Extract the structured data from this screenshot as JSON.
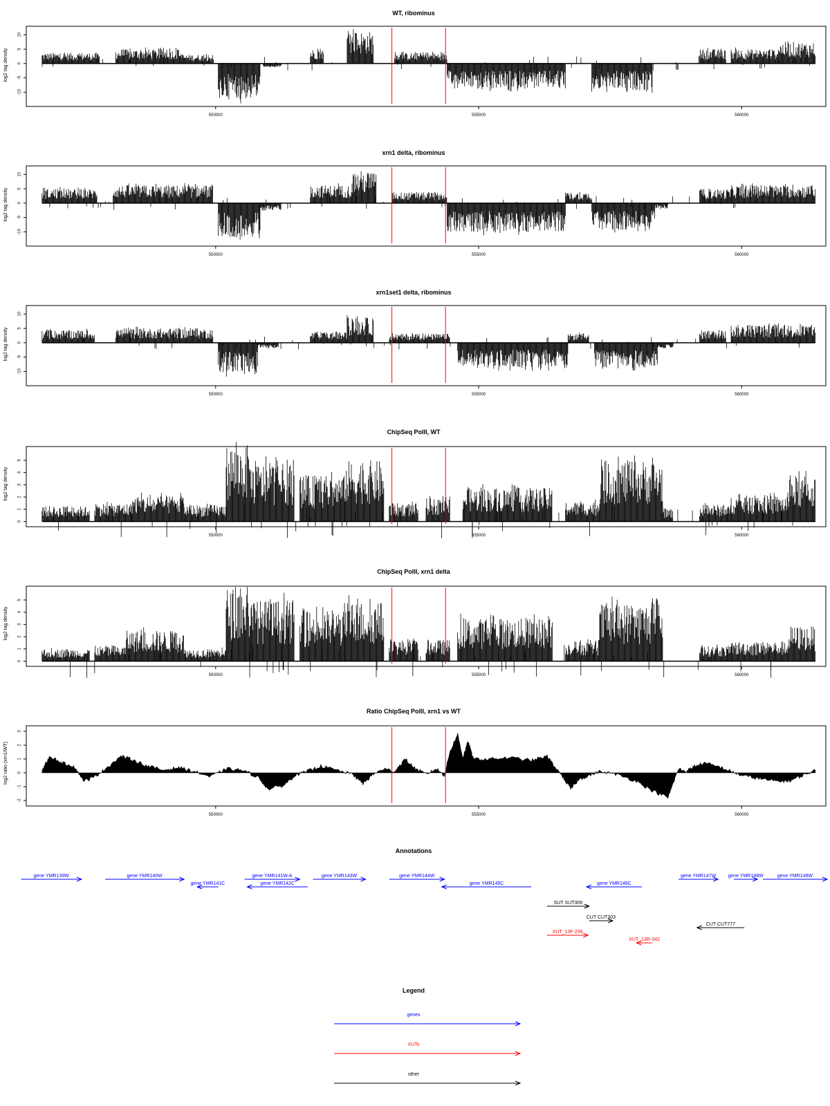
{
  "chart_data": [
    {
      "type": "bar",
      "title": "WT, ribominus",
      "ylabel": "log2 tag density",
      "ylim": [
        -14,
        12
      ],
      "xlim": [
        546400,
        561600
      ],
      "yticks": [
        -10,
        -5,
        0,
        5,
        10
      ],
      "xticks": [
        550000,
        555000,
        560000
      ],
      "markers": [
        553350,
        554370
      ],
      "grid": false,
      "series": [
        {
          "segments": [
            {
              "x": [
                546700,
                547800
              ],
              "y": 3
            },
            {
              "x": [
                548100,
                549350
              ],
              "y": 4
            },
            {
              "x": [
                549350,
                549950
              ],
              "y": 2.5
            },
            {
              "x": [
                550050,
                550850
              ],
              "y": -10
            },
            {
              "x": [
                550900,
                551250
              ],
              "y": -1
            },
            {
              "x": [
                551800,
                552050
              ],
              "y": 4
            },
            {
              "x": [
                552500,
                553000
              ],
              "y": 9
            },
            {
              "x": [
                553400,
                554400
              ],
              "y": 3
            },
            {
              "x": [
                554400,
                556650
              ],
              "y": -7
            },
            {
              "x": [
                557150,
                558300
              ],
              "y": -7.5
            },
            {
              "x": [
                559200,
                559700
              ],
              "y": 4
            },
            {
              "x": [
                559800,
                560700
              ],
              "y": 4
            },
            {
              "x": [
                560700,
                561400
              ],
              "y": 6
            }
          ]
        }
      ]
    },
    {
      "type": "bar",
      "title": "xrn1 delta, ribominus",
      "ylabel": "log2 tag density",
      "ylim": [
        -14,
        12
      ],
      "xlim": [
        546400,
        561600
      ],
      "yticks": [
        -10,
        -5,
        0,
        5,
        10
      ],
      "xticks": [
        550000,
        555000,
        560000
      ],
      "markers": [
        553350,
        554370
      ],
      "grid": false,
      "series": [
        {
          "segments": [
            {
              "x": [
                546700,
                547750
              ],
              "y": 4
            },
            {
              "x": [
                548050,
                549950
              ],
              "y": 5
            },
            {
              "x": [
                550050,
                550850
              ],
              "y": -9.5
            },
            {
              "x": [
                550850,
                551250
              ],
              "y": -2
            },
            {
              "x": [
                551800,
                552600
              ],
              "y": 5
            },
            {
              "x": [
                552600,
                553050
              ],
              "y": 9
            },
            {
              "x": [
                553350,
                554400
              ],
              "y": 3
            },
            {
              "x": [
                554400,
                556650
              ],
              "y": -8
            },
            {
              "x": [
                556650,
                557150
              ],
              "y": 3
            },
            {
              "x": [
                557150,
                558350
              ],
              "y": -7.5
            },
            {
              "x": [
                558350,
                558600
              ],
              "y": -1.5
            },
            {
              "x": [
                559200,
                559800
              ],
              "y": 4
            },
            {
              "x": [
                559800,
                561400
              ],
              "y": 5
            }
          ]
        }
      ]
    },
    {
      "type": "bar",
      "title": "xrn1set1 delta, ribominus",
      "ylabel": "log2 tag density",
      "ylim": [
        -14,
        12
      ],
      "xlim": [
        546400,
        561600
      ],
      "yticks": [
        -10,
        -5,
        0,
        5,
        10
      ],
      "xticks": [
        550000,
        555000,
        560000
      ],
      "markers": [
        553350,
        554370
      ],
      "grid": false,
      "series": [
        {
          "segments": [
            {
              "x": [
                546700,
                547700
              ],
              "y": 3.5
            },
            {
              "x": [
                548100,
                549950
              ],
              "y": 4
            },
            {
              "x": [
                550050,
                550800
              ],
              "y": -8.5
            },
            {
              "x": [
                550800,
                551200
              ],
              "y": -1.5
            },
            {
              "x": [
                551800,
                552500
              ],
              "y": 3
            },
            {
              "x": [
                552500,
                553000
              ],
              "y": 7
            },
            {
              "x": [
                553300,
                554450
              ],
              "y": 2.5
            },
            {
              "x": [
                554600,
                556700
              ],
              "y": -7
            },
            {
              "x": [
                556700,
                557100
              ],
              "y": 2.5
            },
            {
              "x": [
                557200,
                558400
              ],
              "y": -7
            },
            {
              "x": [
                558400,
                558700
              ],
              "y": -1.5
            },
            {
              "x": [
                559200,
                559700
              ],
              "y": 3.5
            },
            {
              "x": [
                559800,
                561400
              ],
              "y": 5
            }
          ]
        }
      ]
    },
    {
      "type": "bar",
      "title": "ChipSeq PolII, WT",
      "ylabel": "log2 tag density",
      "ylim": [
        -0.2,
        5.9
      ],
      "xlim": [
        546400,
        561600
      ],
      "yticks": [
        0,
        1,
        2,
        3,
        4,
        5
      ],
      "xticks": [
        550000,
        555000,
        560000
      ],
      "markers": [
        553350,
        554370
      ],
      "grid": false,
      "series": [
        {
          "segments": [
            {
              "x": [
                546700,
                547600
              ],
              "y": 1
            },
            {
              "x": [
                547700,
                548400
              ],
              "y": 1.2
            },
            {
              "x": [
                548400,
                549400
              ],
              "y": 1.7
            },
            {
              "x": [
                549400,
                550200
              ],
              "y": 1.1
            },
            {
              "x": [
                550200,
                550650
              ],
              "y": 5
            },
            {
              "x": [
                550650,
                551500
              ],
              "y": 3.8
            },
            {
              "x": [
                551600,
                552450
              ],
              "y": 3
            },
            {
              "x": [
                552450,
                553200
              ],
              "y": 4
            },
            {
              "x": [
                553300,
                553850
              ],
              "y": 1.2
            },
            {
              "x": [
                554000,
                554450
              ],
              "y": 1.5
            },
            {
              "x": [
                554700,
                556400
              ],
              "y": 2.2
            },
            {
              "x": [
                556650,
                557300
              ],
              "y": 1.3
            },
            {
              "x": [
                557300,
                558500
              ],
              "y": 4
            },
            {
              "x": [
                558500,
                558700
              ],
              "y": 0.8
            },
            {
              "x": [
                559200,
                559800
              ],
              "y": 1.1
            },
            {
              "x": [
                559800,
                560900
              ],
              "y": 1.7
            },
            {
              "x": [
                560900,
                561400
              ],
              "y": 3
            }
          ]
        }
      ]
    },
    {
      "type": "bar",
      "title": "ChipSeq PolII, xrn1 delta",
      "ylabel": "log2 tag density",
      "ylim": [
        -0.2,
        5.9
      ],
      "xlim": [
        546400,
        561600
      ],
      "yticks": [
        0,
        1,
        2,
        3,
        4,
        5
      ],
      "xticks": [
        550000,
        555000,
        560000
      ],
      "markers": [
        553350,
        554370
      ],
      "grid": false,
      "series": [
        {
          "segments": [
            {
              "x": [
                546700,
                547600
              ],
              "y": 0.8
            },
            {
              "x": [
                547700,
                548300
              ],
              "y": 1
            },
            {
              "x": [
                548300,
                549400
              ],
              "y": 2
            },
            {
              "x": [
                549400,
                550200
              ],
              "y": 0.8
            },
            {
              "x": [
                550200,
                550650
              ],
              "y": 4.8
            },
            {
              "x": [
                550650,
                551500
              ],
              "y": 4
            },
            {
              "x": [
                551600,
                552450
              ],
              "y": 3.3
            },
            {
              "x": [
                552450,
                553200
              ],
              "y": 3.9
            },
            {
              "x": [
                553300,
                553850
              ],
              "y": 1.4
            },
            {
              "x": [
                554000,
                554450
              ],
              "y": 1.4
            },
            {
              "x": [
                554600,
                556400
              ],
              "y": 2.8
            },
            {
              "x": [
                556650,
                557300
              ],
              "y": 1.3
            },
            {
              "x": [
                557300,
                558500
              ],
              "y": 3.8
            },
            {
              "x": [
                559200,
                559800
              ],
              "y": 1
            },
            {
              "x": [
                559800,
                560900
              ],
              "y": 1.3
            },
            {
              "x": [
                560900,
                561400
              ],
              "y": 2.3
            }
          ]
        }
      ]
    },
    {
      "type": "area",
      "title": "Ratio ChipSeq PolII, xrn1 vs WT",
      "ylabel": "log2 ratio (xrn1/WT)",
      "ylim": [
        -2.2,
        3.2
      ],
      "xlim": [
        546400,
        561600
      ],
      "yticks": [
        -2,
        -1,
        0,
        1,
        2,
        3
      ],
      "xticks": [
        550000,
        555000,
        560000
      ],
      "markers": [
        553350,
        554370
      ],
      "grid": false,
      "series": [
        {
          "x": [
            546700,
            546850,
            547100,
            547300,
            547500,
            547700,
            547900,
            548200,
            548400,
            548700,
            549000,
            549300,
            549600,
            549900,
            550200,
            550500,
            550800,
            551000,
            551300,
            551500,
            551800,
            552000,
            552300,
            552600,
            552800,
            553000,
            553200,
            553400,
            553600,
            553800,
            554000,
            554200,
            554350,
            554450,
            554600,
            554700,
            554800,
            554900,
            555200,
            555600,
            556000,
            556300,
            556600,
            556750,
            556900,
            557100,
            557300,
            557600,
            558000,
            558300,
            558600,
            558800,
            558950,
            559100,
            559300,
            559600,
            559800,
            560000,
            560300,
            560600,
            560900,
            561100,
            561400
          ],
          "y": [
            0.2,
            1.2,
            0.7,
            0.5,
            -0.6,
            -0.3,
            0.3,
            1.2,
            1,
            0.5,
            0.2,
            0.4,
            0.1,
            -0.3,
            0.3,
            0.2,
            -0.3,
            -1.2,
            -0.9,
            -0.2,
            0.2,
            0.5,
            0.2,
            -0.1,
            -0.8,
            -0.1,
            0.3,
            0.1,
            1,
            0.3,
            -0.1,
            0.3,
            -0.2,
            1.5,
            2.8,
            1.1,
            2.3,
            1,
            1,
            1.1,
            0.9,
            1.2,
            -0.3,
            -1.2,
            -0.5,
            -0.2,
            0.1,
            -0.1,
            -0.6,
            -1.3,
            -1.8,
            0.3,
            0.1,
            0.5,
            0.7,
            0.4,
            0.1,
            -0.2,
            -0.4,
            -0.6,
            -0.6,
            -0.3,
            0.2
          ]
        }
      ]
    }
  ],
  "annotations": {
    "title": "Annotations",
    "features": [
      {
        "label": "gene YMR139W",
        "kind": "gene",
        "strand": "+",
        "start": 546300,
        "end": 547450,
        "row": 0
      },
      {
        "label": "gene YMR140W",
        "kind": "gene",
        "strand": "+",
        "start": 547900,
        "end": 549400,
        "row": 0
      },
      {
        "label": "gene YMR141C",
        "kind": "gene",
        "strand": "-",
        "start": 549650,
        "end": 550050,
        "row": 1
      },
      {
        "label": "gene YMR141W-A",
        "kind": "gene",
        "strand": "+",
        "start": 550550,
        "end": 551600,
        "row": 0
      },
      {
        "label": "gene YMR142C",
        "kind": "gene",
        "strand": "-",
        "start": 550600,
        "end": 551750,
        "row": 1
      },
      {
        "label": "gene YMR143W",
        "kind": "gene",
        "strand": "+",
        "start": 551850,
        "end": 552850,
        "row": 0
      },
      {
        "label": "gene YMR144W",
        "kind": "gene",
        "strand": "+",
        "start": 553300,
        "end": 554350,
        "row": 0
      },
      {
        "label": "gene YMR145C",
        "kind": "gene",
        "strand": "-",
        "start": 554300,
        "end": 556000,
        "row": 1
      },
      {
        "label": "gene YMR146C",
        "kind": "gene",
        "strand": "-",
        "start": 557050,
        "end": 558100,
        "row": 1
      },
      {
        "label": "gene YMR147W",
        "kind": "gene",
        "strand": "+",
        "start": 558800,
        "end": 559550,
        "row": 0
      },
      {
        "label": "gene YMR148W",
        "kind": "gene",
        "strand": "+",
        "start": 559850,
        "end": 560300,
        "row": 0
      },
      {
        "label": "gene YMR149W",
        "kind": "gene",
        "strand": "+",
        "start": 560400,
        "end": 561800,
        "row": 0
      },
      {
        "label": "SUT SUT309",
        "kind": "other",
        "strand": "+",
        "start": 556300,
        "end": 557100,
        "row": 3
      },
      {
        "label": "CUT CUT303",
        "kind": "other",
        "strand": "+",
        "start": 557100,
        "end": 557550,
        "row": 4
      },
      {
        "label": "CUT CUT777",
        "kind": "other",
        "strand": "-",
        "start": 559150,
        "end": 560050,
        "row": 5
      },
      {
        "label": "XUT_13F-239",
        "kind": "xut",
        "strand": "+",
        "start": 556300,
        "end": 557080,
        "row": 6
      },
      {
        "label": "XUT_13R-342",
        "kind": "xut",
        "strand": "-",
        "start": 558000,
        "end": 558300,
        "row": 7
      }
    ]
  },
  "legend": {
    "title": "Legend",
    "items": [
      {
        "label": "genes",
        "color": "#0000ff"
      },
      {
        "label": "XUTs",
        "color": "#ff0000"
      },
      {
        "label": "other",
        "color": "#000000"
      }
    ]
  },
  "colors": {
    "gene": "#0000ff",
    "xut": "#ff0000",
    "other": "#000000",
    "marker": "#ff0000",
    "bars": "#000000"
  }
}
